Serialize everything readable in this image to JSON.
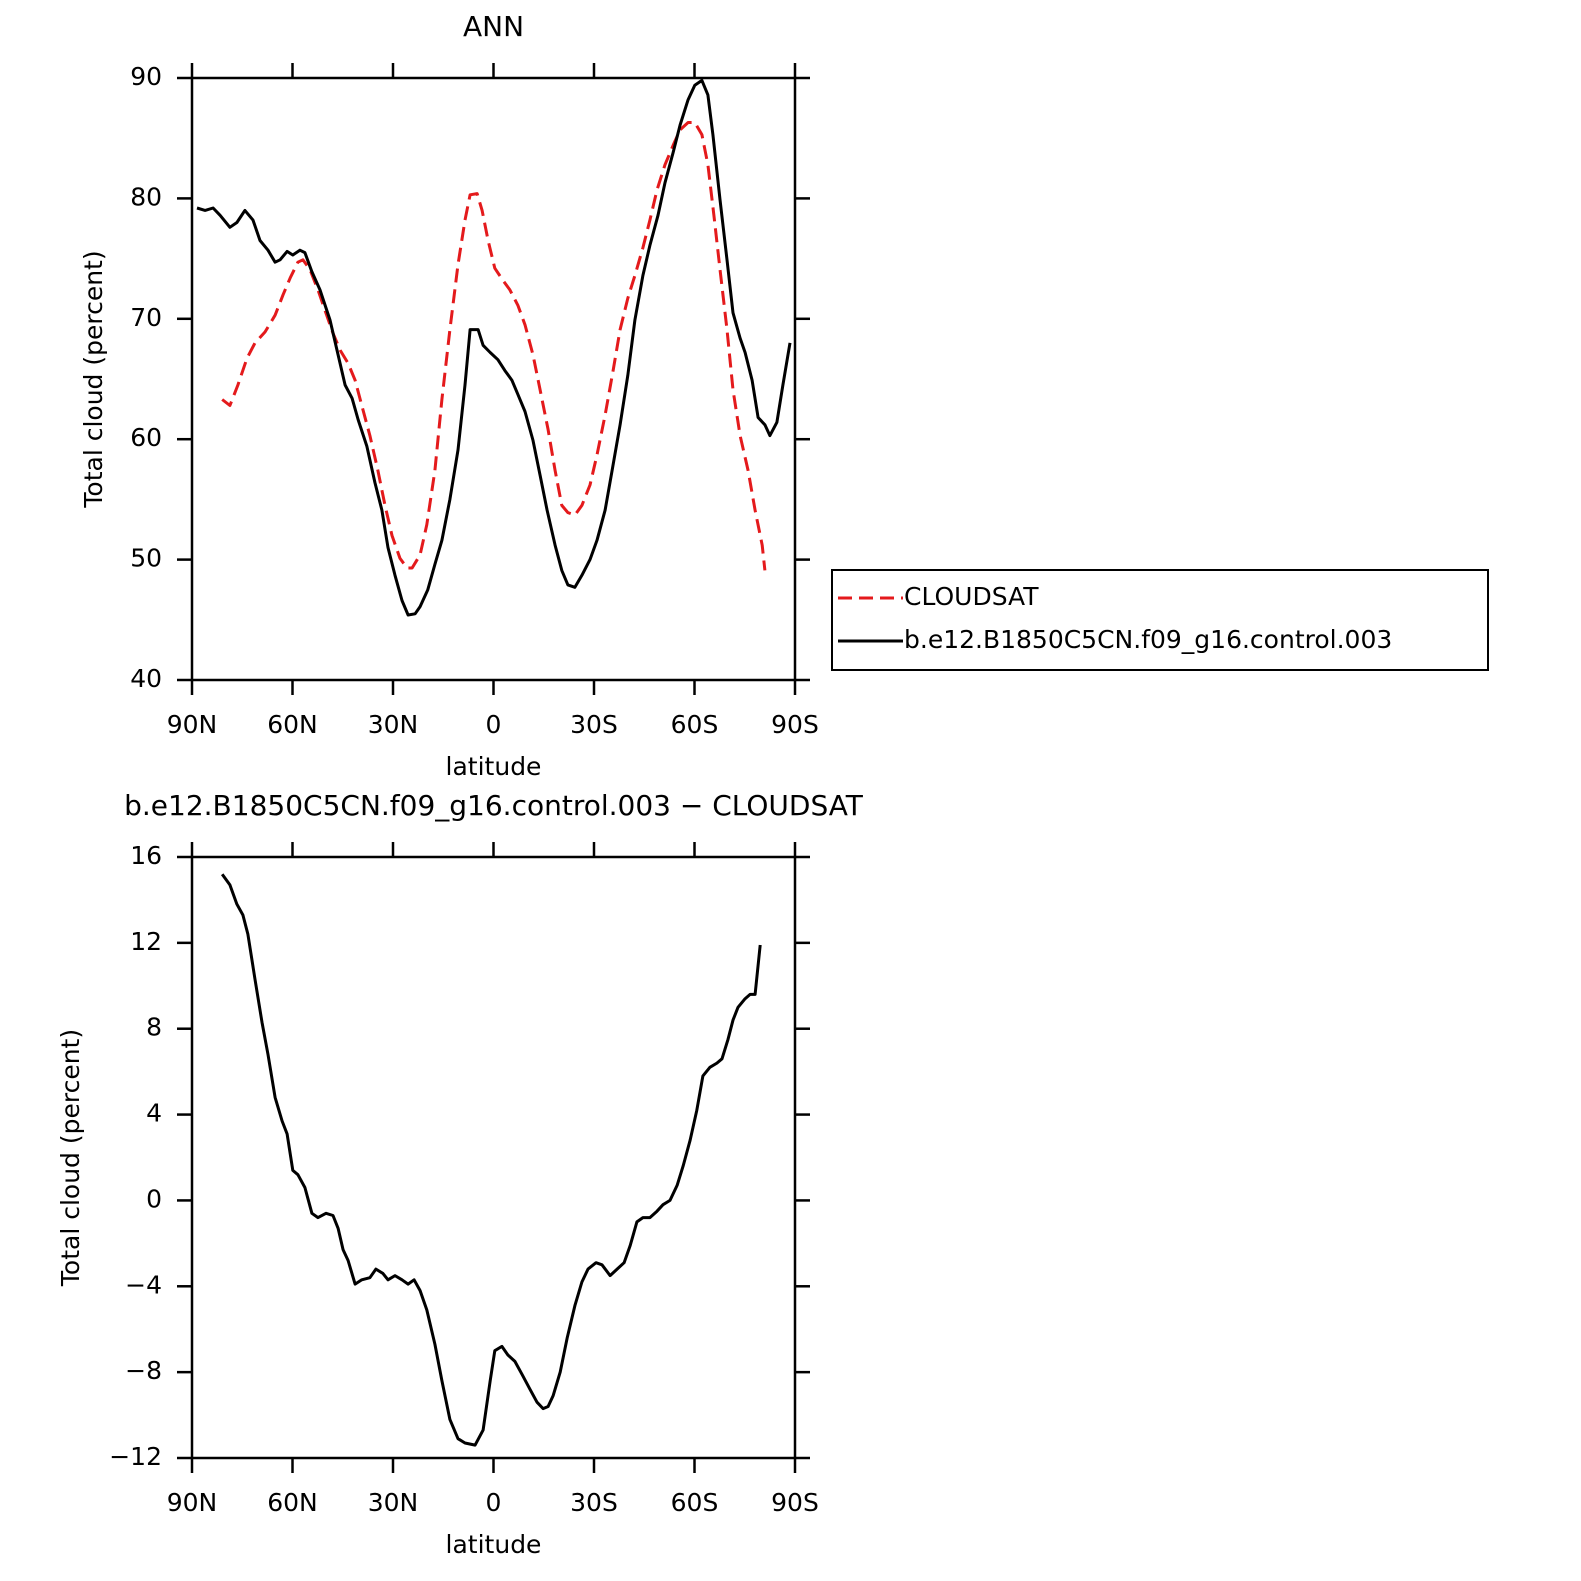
{
  "chart_data": [
    {
      "type": "line",
      "title": "ANN",
      "xlabel": "latitude",
      "ylabel": "Total cloud (percent)",
      "xlim": [
        90,
        -90
      ],
      "xticks": [
        {
          "value": 90,
          "label": "90N"
        },
        {
          "value": 60,
          "label": "60N"
        },
        {
          "value": 30,
          "label": "30N"
        },
        0,
        {
          "value": -30,
          "label": "30S"
        },
        {
          "value": -60,
          "label": "60S"
        },
        {
          "value": -90,
          "label": "90S"
        }
      ],
      "ylim": [
        40,
        90
      ],
      "yticks": [
        40,
        50,
        60,
        70,
        80,
        90
      ],
      "legend": "right",
      "series": [
        {
          "name": "CLOUDSAT",
          "color": "#e41a1c",
          "style": "dashed",
          "x": [
            81.0,
            78.7,
            76.3,
            73.6,
            71.2,
            68.2,
            65.2,
            62.8,
            60.7,
            58.4,
            56.9,
            54.8,
            52.4,
            50.3,
            47.9,
            45.8,
            43.4,
            41.3,
            39.3,
            36.9,
            34.5,
            32.4,
            30.3,
            27.9,
            25.8,
            24.3,
            21.9,
            19.9,
            17.5,
            15.4,
            13.0,
            10.6,
            8.5,
            7.0,
            4.9,
            3.4,
            1.6,
            -0.4,
            -2.8,
            -4.9,
            -7.3,
            -9.4,
            -11.8,
            -13.9,
            -16.3,
            -18.4,
            -20.4,
            -22.2,
            -24.3,
            -26.4,
            -28.8,
            -30.9,
            -33.3,
            -35.7,
            -37.8,
            -40.1,
            -42.2,
            -44.6,
            -46.7,
            -48.8,
            -51.2,
            -53.6,
            -55.7,
            -58.1,
            -60.1,
            -62.2,
            -64.0,
            -65.8,
            -67.6,
            -69.7,
            -71.5,
            -73.6,
            -76.0,
            -78.1,
            -80.2,
            -81.0
          ],
          "values": [
            63.3,
            62.8,
            64.5,
            66.7,
            68.0,
            68.9,
            70.3,
            72.0,
            73.4,
            74.7,
            74.9,
            74.1,
            72.4,
            70.7,
            68.8,
            67.4,
            66.3,
            64.9,
            62.8,
            60.3,
            57.4,
            54.5,
            52.0,
            50.1,
            49.3,
            49.3,
            50.4,
            52.9,
            57.4,
            63.3,
            69.1,
            74.5,
            78.2,
            80.3,
            80.4,
            79.0,
            76.5,
            74.2,
            73.2,
            72.4,
            71.1,
            69.5,
            67.0,
            64.1,
            60.8,
            57.4,
            54.5,
            53.9,
            53.7,
            54.5,
            56.2,
            58.7,
            62.0,
            65.7,
            69.1,
            71.7,
            73.6,
            75.9,
            78.2,
            80.7,
            82.8,
            84.4,
            85.7,
            86.3,
            86.3,
            85.3,
            82.8,
            78.6,
            74.1,
            69.1,
            64.1,
            60.3,
            57.4,
            54.1,
            51.2,
            49.1
          ]
        },
        {
          "name": "b.e12.B1850C5CN.f09_g16.control.003",
          "color": "#000000",
          "style": "solid",
          "x": [
            88.5,
            86.1,
            83.7,
            81.6,
            78.7,
            76.6,
            74.2,
            71.8,
            69.7,
            67.3,
            65.2,
            63.7,
            61.6,
            59.9,
            57.8,
            56.3,
            54.2,
            51.8,
            48.8,
            46.4,
            44.3,
            42.2,
            40.4,
            37.8,
            35.4,
            33.3,
            31.5,
            29.4,
            27.3,
            25.5,
            23.4,
            21.9,
            19.6,
            17.5,
            15.4,
            13.0,
            10.6,
            8.5,
            7.0,
            4.6,
            3.1,
            1.0,
            -1.3,
            -3.4,
            -5.5,
            -7.3,
            -9.4,
            -11.8,
            -13.9,
            -16.0,
            -18.4,
            -20.4,
            -22.2,
            -24.3,
            -26.4,
            -28.8,
            -30.9,
            -33.3,
            -35.4,
            -37.8,
            -40.1,
            -42.2,
            -44.6,
            -46.7,
            -49.1,
            -51.2,
            -53.6,
            -55.7,
            -58.1,
            -60.1,
            -62.2,
            -64.0,
            -65.5,
            -67.6,
            -69.7,
            -71.5,
            -73.6,
            -75.1,
            -77.2,
            -79.0,
            -81.0,
            -82.5,
            -84.6,
            -86.4,
            -88.5
          ],
          "values": [
            79.2,
            79.0,
            79.2,
            78.6,
            77.6,
            78.0,
            79.0,
            78.2,
            76.5,
            75.7,
            74.7,
            74.9,
            75.6,
            75.3,
            75.7,
            75.5,
            73.9,
            72.4,
            69.9,
            67.0,
            64.5,
            63.4,
            61.6,
            59.4,
            56.4,
            54.1,
            51.0,
            48.7,
            46.6,
            45.4,
            45.5,
            46.1,
            47.5,
            49.6,
            51.6,
            55.0,
            59.1,
            64.5,
            69.1,
            69.1,
            67.8,
            67.2,
            66.6,
            65.7,
            64.9,
            63.7,
            62.3,
            59.9,
            57.0,
            54.1,
            51.2,
            49.1,
            47.9,
            47.7,
            48.7,
            50.0,
            51.6,
            54.1,
            57.4,
            61.2,
            65.3,
            69.9,
            73.6,
            76.1,
            78.6,
            81.3,
            83.8,
            86.1,
            88.2,
            89.4,
            89.8,
            88.6,
            85.3,
            79.9,
            74.9,
            70.5,
            68.4,
            67.2,
            64.9,
            61.8,
            61.2,
            60.3,
            61.4,
            64.5,
            68.0
          ]
        }
      ]
    },
    {
      "type": "line",
      "title": "b.e12.B1850C5CN.f09_g16.control.003 − CLOUDSAT",
      "xlabel": "latitude",
      "ylabel": "Total cloud (percent)",
      "xlim": [
        90,
        -90
      ],
      "xticks": [
        {
          "value": 90,
          "label": "90N"
        },
        {
          "value": 60,
          "label": "60N"
        },
        {
          "value": 30,
          "label": "30N"
        },
        0,
        {
          "value": -30,
          "label": "30S"
        },
        {
          "value": -60,
          "label": "60S"
        },
        {
          "value": -90,
          "label": "90S"
        }
      ],
      "ylim": [
        -12,
        16
      ],
      "yticks": [
        {
          "value": -12,
          "label": "−12"
        },
        {
          "value": -8,
          "label": "−8"
        },
        {
          "value": -4,
          "label": "−4"
        },
        0,
        4,
        8,
        12,
        16
      ],
      "series": [
        {
          "color": "#000000",
          "style": "solid",
          "x": [
            81.0,
            78.7,
            76.6,
            74.8,
            73.3,
            71.2,
            69.1,
            67.3,
            65.2,
            63.1,
            61.6,
            59.9,
            58.4,
            56.3,
            54.2,
            52.4,
            50.0,
            47.9,
            46.4,
            44.9,
            43.4,
            41.3,
            39.3,
            36.9,
            35.1,
            33.0,
            31.5,
            29.4,
            27.3,
            25.5,
            23.7,
            21.9,
            19.9,
            17.5,
            15.4,
            13.0,
            10.6,
            8.5,
            5.5,
            3.1,
            1.0,
            -0.4,
            -2.5,
            -4.3,
            -6.4,
            -8.5,
            -10.9,
            -13.0,
            -14.8,
            -16.3,
            -17.8,
            -19.9,
            -22.0,
            -24.3,
            -26.4,
            -28.2,
            -30.6,
            -32.4,
            -34.8,
            -36.9,
            -39.0,
            -40.8,
            -42.8,
            -44.6,
            -46.7,
            -48.8,
            -50.6,
            -52.7,
            -54.8,
            -56.6,
            -58.7,
            -60.7,
            -62.5,
            -64.6,
            -66.7,
            -68.2,
            -70.0,
            -71.5,
            -73.0,
            -75.1,
            -76.6,
            -78.1,
            -79.6
          ],
          "values": [
            15.2,
            14.7,
            13.8,
            13.3,
            12.4,
            10.3,
            8.3,
            6.8,
            4.8,
            3.7,
            3.1,
            1.4,
            1.2,
            0.6,
            -0.6,
            -0.8,
            -0.6,
            -0.7,
            -1.3,
            -2.3,
            -2.8,
            -3.9,
            -3.7,
            -3.6,
            -3.2,
            -3.4,
            -3.7,
            -3.5,
            -3.7,
            -3.9,
            -3.7,
            -4.2,
            -5.1,
            -6.7,
            -8.4,
            -10.2,
            -11.1,
            -11.3,
            -11.4,
            -10.7,
            -8.4,
            -7.0,
            -6.8,
            -7.2,
            -7.5,
            -8.1,
            -8.8,
            -9.4,
            -9.7,
            -9.6,
            -9.1,
            -8.0,
            -6.4,
            -4.9,
            -3.8,
            -3.2,
            -2.9,
            -3.0,
            -3.5,
            -3.2,
            -2.9,
            -2.1,
            -1.0,
            -0.8,
            -0.8,
            -0.5,
            -0.2,
            0.0,
            0.7,
            1.6,
            2.8,
            4.2,
            5.8,
            6.2,
            6.4,
            6.6,
            7.5,
            8.4,
            9.0,
            9.4,
            9.6,
            9.6,
            11.9
          ]
        }
      ]
    }
  ]
}
